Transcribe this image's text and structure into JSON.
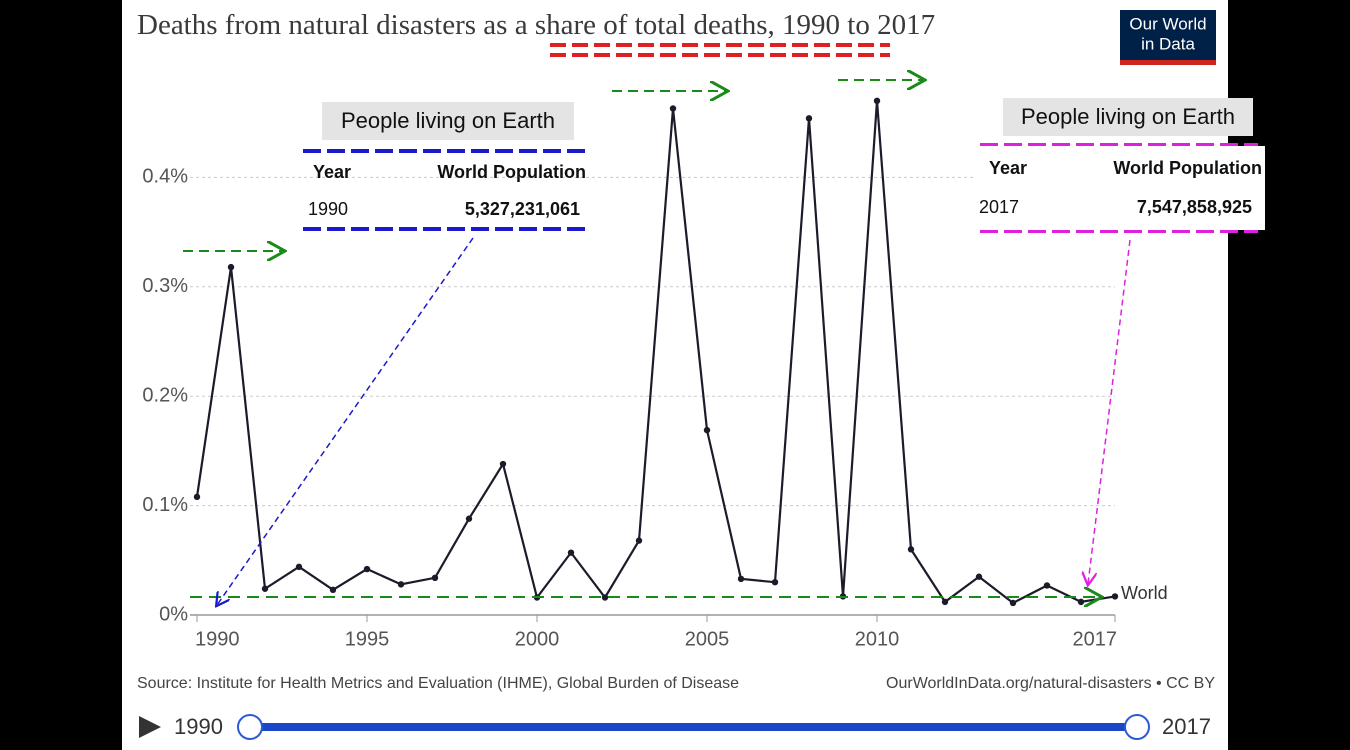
{
  "chart_data": {
    "type": "line",
    "title": "Deaths from natural disasters as a share of total deaths, 1990 to 2017",
    "logo": [
      "Our World",
      "in Data"
    ],
    "x": [
      1990,
      1991,
      1992,
      1993,
      1994,
      1995,
      1996,
      1997,
      1998,
      1999,
      2000,
      2001,
      2002,
      2003,
      2004,
      2005,
      2006,
      2007,
      2008,
      2009,
      2010,
      2011,
      2012,
      2013,
      2014,
      2015,
      2016,
      2017
    ],
    "series": [
      {
        "name": "World",
        "color": "#1b1b2a",
        "values": [
          0.108,
          0.318,
          0.024,
          0.044,
          0.023,
          0.042,
          0.028,
          0.034,
          0.088,
          0.138,
          0.016,
          0.057,
          0.016,
          0.068,
          0.463,
          0.169,
          0.033,
          0.03,
          0.454,
          0.017,
          0.47,
          0.06,
          0.012,
          0.035,
          0.011,
          0.027,
          0.012,
          0.017
        ]
      }
    ],
    "xlim": [
      1990,
      2017
    ],
    "xticks": [
      1990,
      1995,
      2000,
      2005,
      2010,
      2017
    ],
    "ylim": [
      0,
      0.5
    ],
    "yticks": [
      {
        "value": 0,
        "label": "0%"
      },
      {
        "value": 0.1,
        "label": "0.1%"
      },
      {
        "value": 0.2,
        "label": "0.2%"
      },
      {
        "value": 0.3,
        "label": "0.3%"
      },
      {
        "value": 0.4,
        "label": "0.4%"
      }
    ],
    "grid": true,
    "annotations": [
      {
        "title": "People living on Earth",
        "headers": [
          "Year",
          "World Population"
        ],
        "row": [
          "1990",
          "5,327,231,061"
        ]
      },
      {
        "title": "People living on Earth",
        "headers": [
          "Year",
          "World Population"
        ],
        "row": [
          "2017",
          "7,547,858,925"
        ]
      }
    ],
    "source": "Source: Institute for Health Metrics and Evaluation (IHME), Global Burden of Disease",
    "url": "OurWorldInData.org/natural-disasters • CC BY",
    "timeline": [
      "1990",
      "2017"
    ]
  }
}
